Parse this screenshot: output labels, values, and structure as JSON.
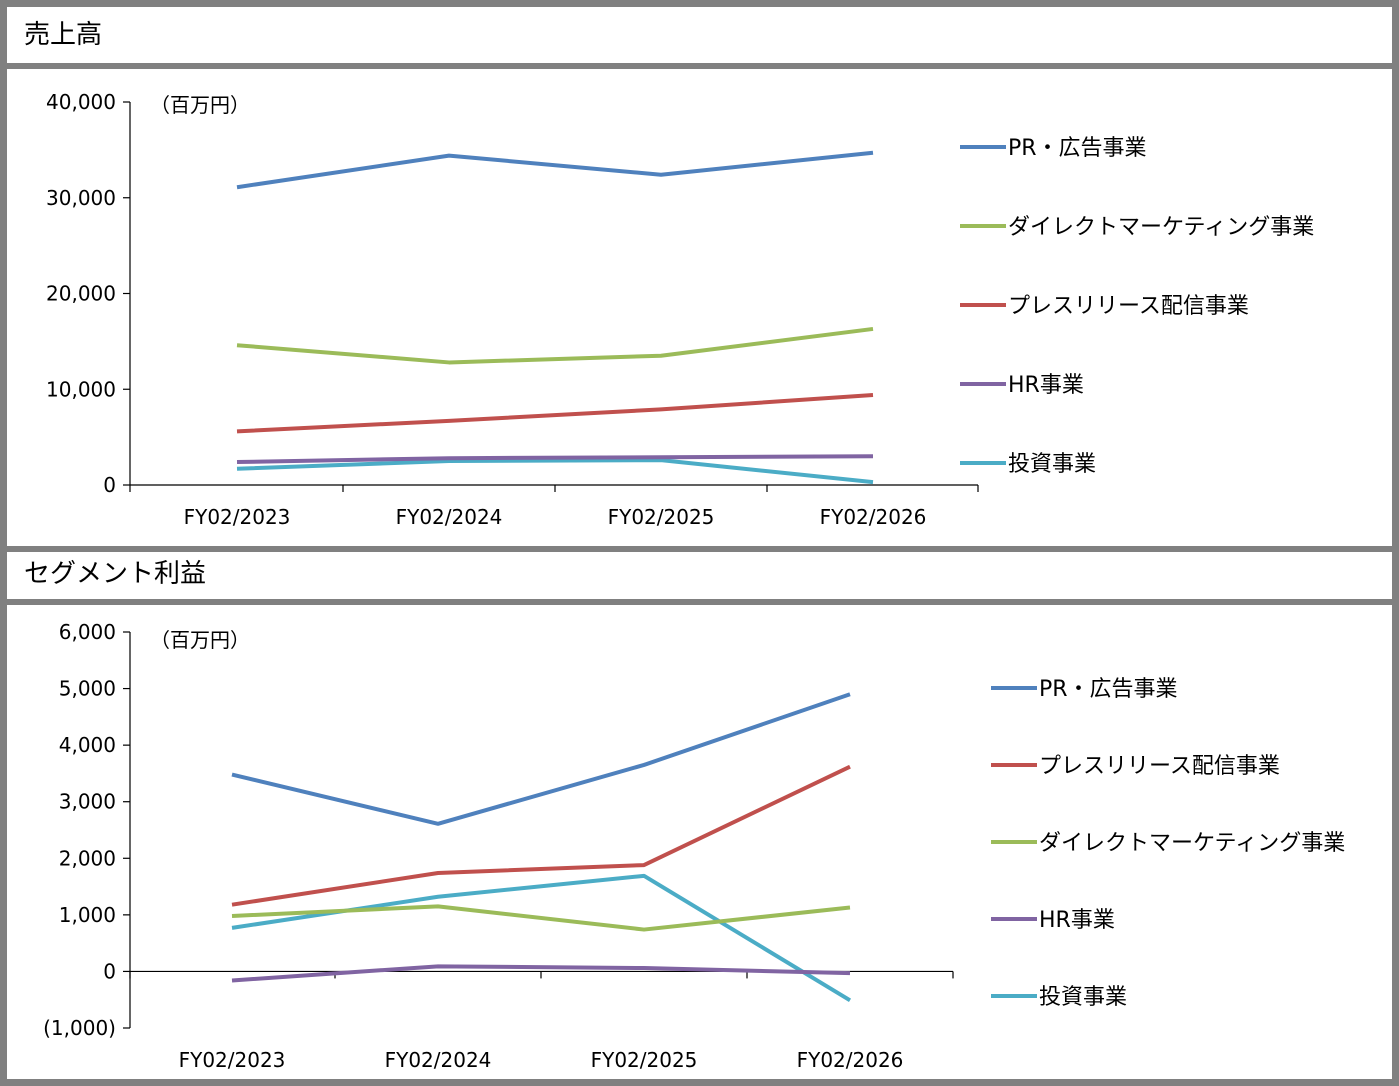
{
  "sections": [
    {
      "title": "売上高",
      "chart_data": {
        "type": "line",
        "title": "売上高",
        "unit_label": "（百万円）",
        "categories": [
          "FY02/2023",
          "FY02/2024",
          "FY02/2025",
          "FY02/2026"
        ],
        "ylim": [
          0,
          40000
        ],
        "yticks": [
          0,
          10000,
          20000,
          30000,
          40000
        ],
        "ytick_labels": [
          "0",
          "10,000",
          "20,000",
          "30,000",
          "40,000"
        ],
        "legend_position": "right",
        "series": [
          {
            "name": "PR・広告事業",
            "color": "#4F81BD",
            "values": [
              31100,
              34400,
              32400,
              34700
            ]
          },
          {
            "name": "ダイレクトマーケティング事業",
            "color": "#9BBB59",
            "values": [
              14600,
              12800,
              13500,
              16300
            ]
          },
          {
            "name": "プレスリリース配信事業",
            "color": "#C0504D",
            "values": [
              5600,
              6700,
              7900,
              9400
            ]
          },
          {
            "name": "HR事業",
            "color": "#8064A2",
            "values": [
              2400,
              2800,
              2900,
              3000
            ]
          },
          {
            "name": "投資事業",
            "color": "#4BACC6",
            "values": [
              1700,
              2500,
              2600,
              300
            ]
          }
        ]
      }
    },
    {
      "title": "セグメント利益",
      "chart_data": {
        "type": "line",
        "title": "セグメント利益",
        "unit_label": "（百万円）",
        "categories": [
          "FY02/2023",
          "FY02/2024",
          "FY02/2025",
          "FY02/2026"
        ],
        "ylim": [
          -1000,
          6000
        ],
        "yticks": [
          -1000,
          0,
          1000,
          2000,
          3000,
          4000,
          5000,
          6000
        ],
        "ytick_labels": [
          "(1,000)",
          "0",
          "1,000",
          "2,000",
          "3,000",
          "4,000",
          "5,000",
          "6,000"
        ],
        "legend_position": "right",
        "series": [
          {
            "name": "PR・広告事業",
            "color": "#4F81BD",
            "values": [
              3480,
              2610,
              3650,
              4900
            ]
          },
          {
            "name": "プレスリリース配信事業",
            "color": "#C0504D",
            "values": [
              1180,
              1740,
              1880,
              3620
            ]
          },
          {
            "name": "ダイレクトマーケティング事業",
            "color": "#9BBB59",
            "values": [
              980,
              1150,
              740,
              1130
            ]
          },
          {
            "name": "HR事業",
            "color": "#8064A2",
            "values": [
              -160,
              90,
              60,
              -30
            ]
          },
          {
            "name": "投資事業",
            "color": "#4BACC6",
            "values": [
              770,
              1320,
              1690,
              -510
            ]
          }
        ]
      }
    }
  ]
}
